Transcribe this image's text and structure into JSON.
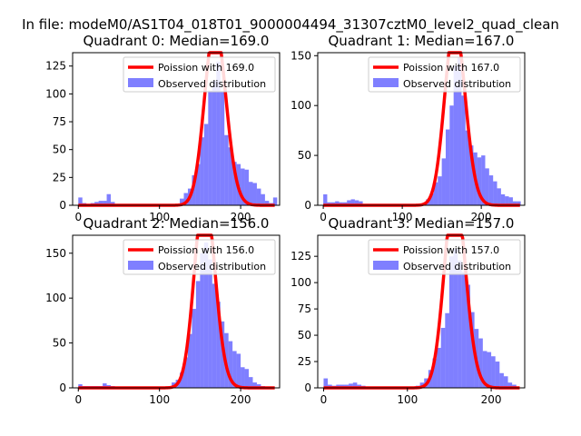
{
  "suptitle": "In file: modeM0/AS1T04_018T01_9000004494_31307cztM0_level2_quad_clean",
  "colors": {
    "hist": "#0000ff",
    "line": "#ff0000"
  },
  "chart_data": [
    {
      "type": "bar",
      "title": "Quadrant 0: Median=169.0",
      "median": 169.0,
      "legend": {
        "line_label": "Poission with 169.0",
        "hist_label": "Observed distribution",
        "location": "upper-right"
      },
      "xlim": [
        -7,
        248
      ],
      "ylim": [
        0,
        137
      ],
      "xticks": [
        0,
        100,
        200
      ],
      "yticks": [
        0,
        25,
        50,
        75,
        100,
        125
      ],
      "bin_width": 5,
      "bins": [
        [
          0,
          7
        ],
        [
          5,
          2
        ],
        [
          10,
          1
        ],
        [
          15,
          2
        ],
        [
          20,
          3
        ],
        [
          25,
          4
        ],
        [
          30,
          4
        ],
        [
          35,
          10
        ],
        [
          40,
          3
        ],
        [
          45,
          1
        ],
        [
          50,
          1
        ],
        [
          55,
          0
        ],
        [
          60,
          1
        ],
        [
          65,
          1
        ],
        [
          70,
          0
        ],
        [
          75,
          0
        ],
        [
          80,
          0
        ],
        [
          85,
          1
        ],
        [
          90,
          0
        ],
        [
          95,
          0
        ],
        [
          100,
          0
        ],
        [
          105,
          0
        ],
        [
          110,
          0
        ],
        [
          115,
          0
        ],
        [
          120,
          1
        ],
        [
          125,
          6
        ],
        [
          130,
          11
        ],
        [
          135,
          15
        ],
        [
          140,
          27
        ],
        [
          145,
          37
        ],
        [
          150,
          61
        ],
        [
          155,
          73
        ],
        [
          160,
          103
        ],
        [
          165,
          112
        ],
        [
          170,
          129
        ],
        [
          175,
          102
        ],
        [
          180,
          63
        ],
        [
          185,
          52
        ],
        [
          190,
          39
        ],
        [
          195,
          37
        ],
        [
          200,
          33
        ],
        [
          205,
          32
        ],
        [
          210,
          21
        ],
        [
          215,
          20
        ],
        [
          220,
          15
        ],
        [
          225,
          10
        ],
        [
          230,
          4
        ],
        [
          235,
          2
        ],
        [
          240,
          7
        ]
      ]
    },
    {
      "type": "bar",
      "title": "Quadrant 1: Median=167.0",
      "median": 167.0,
      "legend": {
        "line_label": "Poission with 167.0",
        "hist_label": "Observed distribution",
        "location": "upper-right"
      },
      "xlim": [
        -7,
        255
      ],
      "ylim": [
        0,
        153
      ],
      "xticks": [
        0,
        100,
        200
      ],
      "yticks": [
        0,
        50,
        100,
        150
      ],
      "bin_width": 5,
      "bins": [
        [
          0,
          11
        ],
        [
          5,
          3
        ],
        [
          10,
          3
        ],
        [
          15,
          4
        ],
        [
          20,
          3
        ],
        [
          25,
          3
        ],
        [
          30,
          5
        ],
        [
          35,
          6
        ],
        [
          40,
          5
        ],
        [
          45,
          4
        ],
        [
          50,
          1
        ],
        [
          55,
          1
        ],
        [
          60,
          1
        ],
        [
          65,
          1
        ],
        [
          70,
          0
        ],
        [
          75,
          0
        ],
        [
          80,
          0
        ],
        [
          85,
          0
        ],
        [
          90,
          0
        ],
        [
          95,
          0
        ],
        [
          100,
          1
        ],
        [
          105,
          0
        ],
        [
          110,
          0
        ],
        [
          115,
          1
        ],
        [
          120,
          1
        ],
        [
          125,
          2
        ],
        [
          130,
          6
        ],
        [
          135,
          12
        ],
        [
          140,
          23
        ],
        [
          145,
          29
        ],
        [
          150,
          47
        ],
        [
          155,
          76
        ],
        [
          160,
          100
        ],
        [
          165,
          140
        ],
        [
          170,
          148
        ],
        [
          175,
          110
        ],
        [
          180,
          75
        ],
        [
          185,
          60
        ],
        [
          190,
          53
        ],
        [
          195,
          48
        ],
        [
          200,
          50
        ],
        [
          205,
          37
        ],
        [
          210,
          30
        ],
        [
          215,
          24
        ],
        [
          220,
          17
        ],
        [
          225,
          11
        ],
        [
          230,
          9
        ],
        [
          235,
          8
        ],
        [
          240,
          4
        ],
        [
          245,
          4
        ]
      ]
    },
    {
      "type": "bar",
      "title": "Quadrant 2: Median=156.0",
      "median": 156.0,
      "legend": {
        "line_label": "Poission with 156.0",
        "hist_label": "Observed distribution",
        "location": "upper-right"
      },
      "xlim": [
        -7,
        248
      ],
      "ylim": [
        0,
        170
      ],
      "xticks": [
        0,
        100,
        200
      ],
      "yticks": [
        0,
        50,
        100,
        150
      ],
      "bin_width": 5,
      "bins": [
        [
          0,
          4
        ],
        [
          5,
          2
        ],
        [
          10,
          2
        ],
        [
          15,
          2
        ],
        [
          20,
          2
        ],
        [
          25,
          2
        ],
        [
          30,
          5
        ],
        [
          35,
          3
        ],
        [
          40,
          2
        ],
        [
          45,
          1
        ],
        [
          50,
          1
        ],
        [
          55,
          1
        ],
        [
          60,
          1
        ],
        [
          65,
          1
        ],
        [
          70,
          0
        ],
        [
          75,
          0
        ],
        [
          80,
          0
        ],
        [
          85,
          0
        ],
        [
          90,
          0
        ],
        [
          95,
          0
        ],
        [
          100,
          0
        ],
        [
          105,
          1
        ],
        [
          110,
          2
        ],
        [
          115,
          6
        ],
        [
          120,
          9
        ],
        [
          125,
          17
        ],
        [
          130,
          34
        ],
        [
          135,
          60
        ],
        [
          140,
          88
        ],
        [
          145,
          119
        ],
        [
          150,
          150
        ],
        [
          155,
          162
        ],
        [
          160,
          143
        ],
        [
          165,
          116
        ],
        [
          170,
          96
        ],
        [
          175,
          74
        ],
        [
          180,
          61
        ],
        [
          185,
          52
        ],
        [
          190,
          41
        ],
        [
          195,
          38
        ],
        [
          200,
          23
        ],
        [
          205,
          21
        ],
        [
          210,
          12
        ],
        [
          215,
          6
        ],
        [
          220,
          4
        ],
        [
          225,
          2
        ],
        [
          230,
          1
        ],
        [
          235,
          1
        ]
      ]
    },
    {
      "type": "bar",
      "title": "Quadrant 3: Median=157.0",
      "median": 157.0,
      "legend": {
        "line_label": "Poission with 157.0",
        "hist_label": "Observed distribution",
        "location": "upper-right"
      },
      "xlim": [
        -7,
        240
      ],
      "ylim": [
        0,
        145
      ],
      "xticks": [
        0,
        100,
        200
      ],
      "yticks": [
        0,
        25,
        50,
        75,
        100,
        125
      ],
      "bin_width": 5,
      "bins": [
        [
          0,
          9
        ],
        [
          5,
          3
        ],
        [
          10,
          2
        ],
        [
          15,
          3
        ],
        [
          20,
          3
        ],
        [
          25,
          3
        ],
        [
          30,
          4
        ],
        [
          35,
          5
        ],
        [
          40,
          3
        ],
        [
          45,
          2
        ],
        [
          50,
          1
        ],
        [
          55,
          0
        ],
        [
          60,
          0
        ],
        [
          65,
          0
        ],
        [
          70,
          0
        ],
        [
          75,
          0
        ],
        [
          80,
          0
        ],
        [
          85,
          0
        ],
        [
          90,
          0
        ],
        [
          95,
          0
        ],
        [
          100,
          0
        ],
        [
          105,
          1
        ],
        [
          110,
          2
        ],
        [
          115,
          5
        ],
        [
          120,
          9
        ],
        [
          125,
          17
        ],
        [
          130,
          28
        ],
        [
          135,
          38
        ],
        [
          140,
          57
        ],
        [
          145,
          71
        ],
        [
          150,
          125
        ],
        [
          155,
          132
        ],
        [
          160,
          121
        ],
        [
          165,
          110
        ],
        [
          170,
          98
        ],
        [
          175,
          72
        ],
        [
          180,
          56
        ],
        [
          185,
          47
        ],
        [
          190,
          35
        ],
        [
          195,
          34
        ],
        [
          200,
          30
        ],
        [
          205,
          25
        ],
        [
          210,
          14
        ],
        [
          215,
          11
        ],
        [
          220,
          5
        ],
        [
          225,
          3
        ]
      ]
    }
  ]
}
